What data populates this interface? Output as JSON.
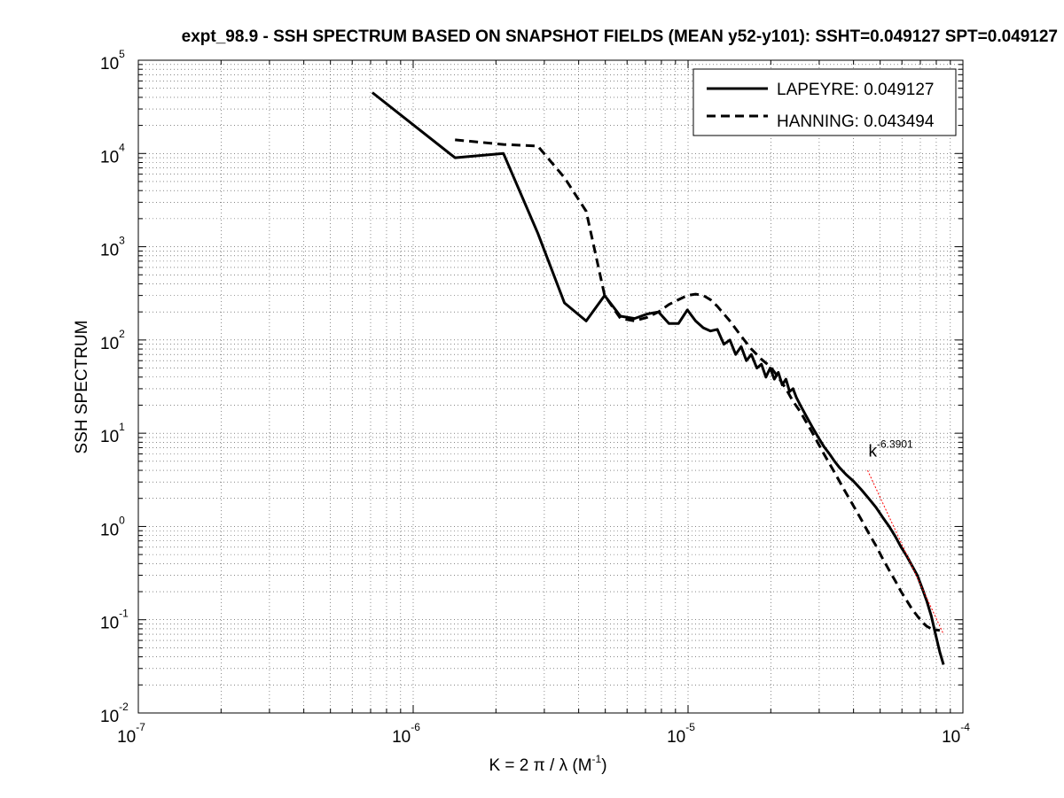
{
  "chart_data": {
    "type": "line",
    "title": "expt_98.9 - SSH SPECTRUM BASED ON SNAPSHOT FIELDS (MEAN y52-y101): SSHT=0.049127 SPT=0.049127",
    "xlabel": {
      "prefix": "K = 2 π / λ  (M",
      "exp": "-1",
      "suffix": ")"
    },
    "ylabel": "SSH SPECTRUM",
    "xscale": "log",
    "yscale": "log",
    "xlim": [
      1e-07,
      0.0001
    ],
    "ylim": [
      0.01,
      100000.0
    ],
    "grid": true,
    "legend_position": "top-right",
    "x_ticks": [
      {
        "base": "10",
        "exp": "-7",
        "value": 1e-07
      },
      {
        "base": "10",
        "exp": "-6",
        "value": 1e-06
      },
      {
        "base": "10",
        "exp": "-5",
        "value": 1e-05
      },
      {
        "base": "10",
        "exp": "-4",
        "value": 0.0001
      }
    ],
    "y_ticks": [
      {
        "base": "10",
        "exp": "-2",
        "value": 0.01
      },
      {
        "base": "10",
        "exp": "-1",
        "value": 0.1
      },
      {
        "base": "10",
        "exp": "0",
        "value": 1.0
      },
      {
        "base": "10",
        "exp": "1",
        "value": 10.0
      },
      {
        "base": "10",
        "exp": "2",
        "value": 100.0
      },
      {
        "base": "10",
        "exp": "3",
        "value": 1000.0
      },
      {
        "base": "10",
        "exp": "4",
        "value": 10000.0
      },
      {
        "base": "10",
        "exp": "5",
        "value": 100000.0
      }
    ],
    "series": [
      {
        "name": "LAPEYRE: 0.049127",
        "style": "solid",
        "color": "#000000",
        "x": [
          7.1e-07,
          1.42e-06,
          2.13e-06,
          2.84e-06,
          3.55e-06,
          4.26e-06,
          4.97e-06,
          5.68e-06,
          6.39e-06,
          7.1e-06,
          7.81e-06,
          8.52e-06,
          9.23e-06,
          9.94e-06,
          1.065e-05,
          1.136e-05,
          1.207e-05,
          1.278e-05,
          1.35e-05,
          1.42e-05,
          1.49e-05,
          1.56e-05,
          1.63e-05,
          1.7e-05,
          1.78e-05,
          1.85e-05,
          1.92e-05,
          1.99e-05,
          2.06e-05,
          2.13e-05,
          2.2e-05,
          2.27e-05,
          2.34e-05,
          2.41e-05,
          2.48e-05,
          2.56e-05,
          2.7e-05,
          2.84e-05,
          2.98e-05,
          3.12e-05,
          3.27e-05,
          3.41e-05,
          3.55e-05,
          3.76e-05,
          3.98e-05,
          4.26e-05,
          4.54e-05,
          4.83e-05,
          5.11e-05,
          5.39e-05,
          5.68e-05,
          5.96e-05,
          6.25e-05,
          6.53e-05,
          6.82e-05,
          7.1e-05,
          7.38e-05,
          7.67e-05,
          7.95e-05,
          8.24e-05,
          8.5e-05
        ],
        "y": [
          45000,
          9000,
          10000,
          1400,
          250,
          160,
          300,
          180,
          170,
          190,
          200,
          150,
          150,
          210,
          160,
          135,
          125,
          130,
          90,
          100,
          70,
          85,
          60,
          70,
          50,
          55,
          40,
          50,
          38,
          45,
          33,
          38,
          28,
          30,
          24,
          20,
          15,
          11.5,
          9,
          7.2,
          6,
          5,
          4.3,
          3.6,
          3.1,
          2.5,
          2.0,
          1.6,
          1.25,
          1.0,
          0.78,
          0.6,
          0.48,
          0.38,
          0.3,
          0.22,
          0.16,
          0.11,
          0.07,
          0.045,
          0.033
        ]
      },
      {
        "name": "HANNING: 0.043494",
        "style": "dashed",
        "color": "#000000",
        "x": [
          1.42e-06,
          2.13e-06,
          2.84e-06,
          3.55e-06,
          4.26e-06,
          4.97e-06,
          5.68e-06,
          6.39e-06,
          7.1e-06,
          7.81e-06,
          8.52e-06,
          9.23e-06,
          9.94e-06,
          1.065e-05,
          1.136e-05,
          1.207e-05,
          1.278e-05,
          1.42e-05,
          1.56e-05,
          1.7e-05,
          1.85e-05,
          1.99e-05,
          2.13e-05,
          2.27e-05,
          2.41e-05,
          2.56e-05,
          2.84e-05,
          3.12e-05,
          3.41e-05,
          3.69e-05,
          3.98e-05,
          4.26e-05,
          4.54e-05,
          4.83e-05,
          5.11e-05,
          5.39e-05,
          5.68e-05,
          5.96e-05,
          6.25e-05,
          6.53e-05,
          6.82e-05,
          7.1e-05,
          7.38e-05,
          7.67e-05,
          7.95e-05,
          8.24e-05
        ],
        "y": [
          14000,
          12500,
          12000,
          5500,
          2400,
          300,
          170,
          160,
          175,
          200,
          240,
          270,
          300,
          310,
          300,
          270,
          230,
          160,
          110,
          80,
          62,
          52,
          40,
          30,
          22,
          17,
          10,
          6.0,
          3.8,
          2.5,
          1.7,
          1.2,
          0.85,
          0.62,
          0.45,
          0.34,
          0.26,
          0.2,
          0.16,
          0.13,
          0.11,
          0.095,
          0.085,
          0.08,
          0.078,
          0.077
        ]
      }
    ],
    "fit_line": {
      "color": "#ff0000",
      "style": "dotted",
      "exponent": -6.3901,
      "x": [
        4.5e-05,
        8.5e-05
      ],
      "y": [
        4.0,
        0.07
      ]
    },
    "annotation": {
      "base": "k",
      "exp": "-6.3901",
      "x": 4.4e-05,
      "y": 4.5
    }
  }
}
